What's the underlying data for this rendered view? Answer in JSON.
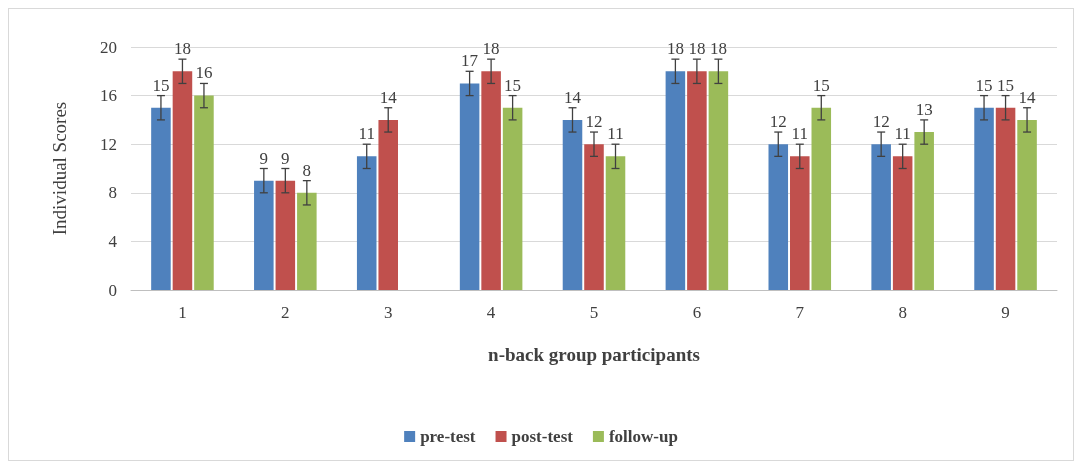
{
  "chart_data": {
    "type": "bar",
    "xlabel": "n-back group participants",
    "ylabel": "Individual Scores",
    "categories": [
      "1",
      "2",
      "3",
      "4",
      "5",
      "6",
      "7",
      "8",
      "9"
    ],
    "series": [
      {
        "name": "pre-test",
        "color": "#4f81bd",
        "values": [
          15,
          9,
          11,
          17,
          14,
          18,
          12,
          12,
          15
        ],
        "errors": [
          1,
          1,
          1,
          1,
          1,
          1,
          1,
          1,
          1
        ]
      },
      {
        "name": "post-test",
        "color": "#c0504d",
        "values": [
          18,
          9,
          14,
          18,
          12,
          18,
          11,
          11,
          15
        ],
        "errors": [
          1,
          1,
          1,
          1,
          1,
          1,
          1,
          1,
          1
        ]
      },
      {
        "name": "follow-up",
        "color": "#9bbb59",
        "values": [
          16,
          8,
          null,
          15,
          11,
          18,
          15,
          13,
          14
        ],
        "errors": [
          1,
          1,
          null,
          1,
          1,
          1,
          1,
          1,
          1
        ]
      }
    ],
    "ylim": [
      0,
      20
    ],
    "yticks": [
      0,
      4,
      8,
      12,
      16,
      20
    ],
    "grid": "y",
    "legend": "bottom",
    "data_labels": true
  }
}
